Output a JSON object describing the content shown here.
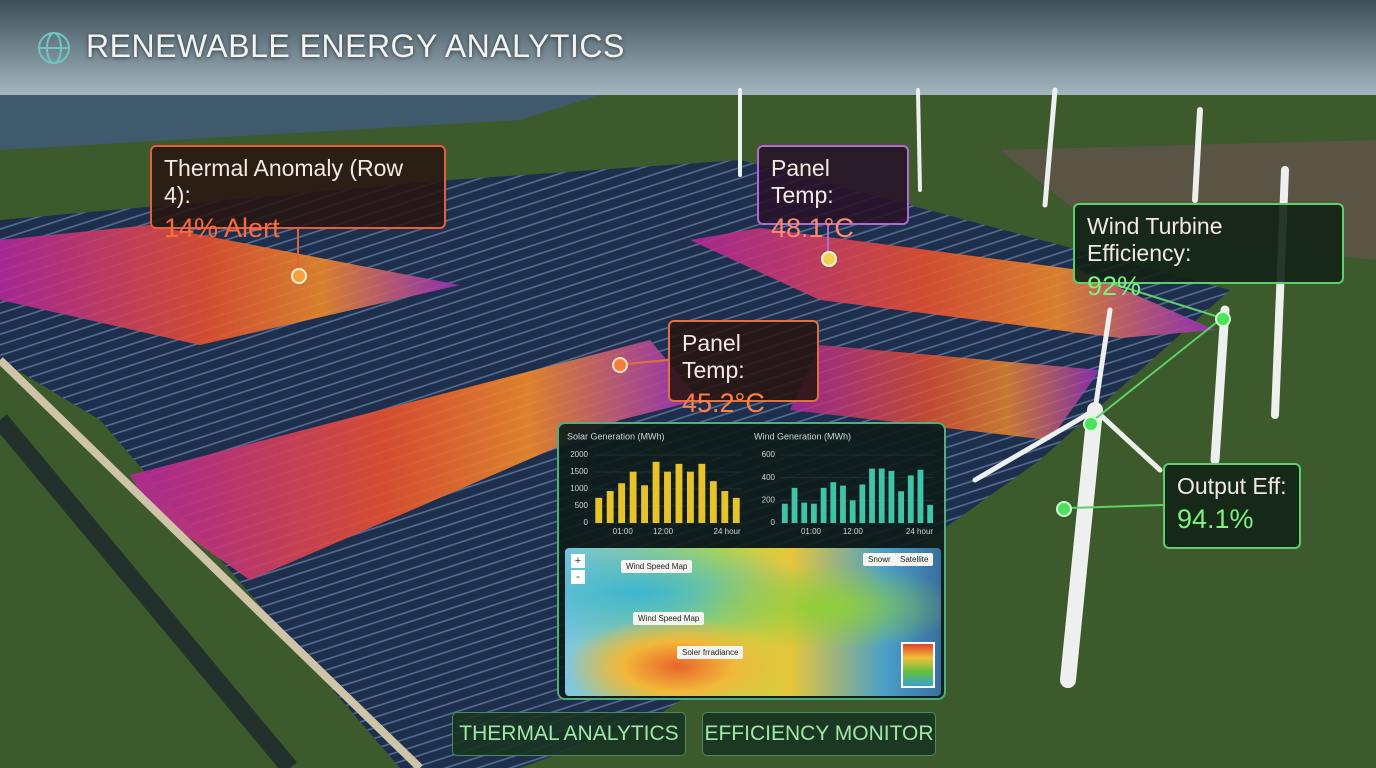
{
  "header": {
    "title": "RENEWABLE ENERGY ANALYTICS"
  },
  "callouts": [
    {
      "label": "Thermal Anomaly (Row 4):",
      "value": "14% Alert"
    },
    {
      "label": "Panel Temp:",
      "value": "48.1°C"
    },
    {
      "label": "Panel Temp:",
      "value": "45.2°C"
    },
    {
      "label": "Wind Turbine Efficiency:",
      "value": "92%"
    },
    {
      "label": "Output Eff:",
      "value": "94.1%"
    }
  ],
  "panel": {
    "charts": [
      {
        "type": "bar",
        "title": "Solar Generation (MWh)",
        "color": "#e8c22a",
        "values": [
          740,
          940,
          1170,
          1510,
          1110,
          1800,
          1510,
          1740,
          1510,
          1740,
          1230,
          940,
          740
        ],
        "ylim": [
          0,
          2000
        ],
        "yticks": [
          0,
          500,
          1000,
          1500,
          2000
        ],
        "xlabels": [
          "01:00",
          "12:00",
          "24 hour"
        ]
      },
      {
        "type": "bar",
        "title": "Wind Generation (MWh)",
        "color": "#3fc4a8",
        "values": [
          170,
          310,
          180,
          170,
          310,
          360,
          330,
          200,
          340,
          480,
          480,
          460,
          280,
          420,
          470,
          160
        ],
        "ylim": [
          0,
          600
        ],
        "yticks": [
          0,
          200,
          400,
          600
        ],
        "xlabels": [
          "01:00",
          "12:00",
          "24 hour"
        ]
      }
    ],
    "map": {
      "labels": [
        "Wind Speed Map",
        "Wind Speed Map",
        "Soler frradiance"
      ],
      "controls": [
        "+",
        "-"
      ],
      "layers": [
        "Snowr",
        "Satellite"
      ]
    }
  },
  "buttons": [
    "THERMAL ANALYTICS",
    "EFFICIENCY MONITOR"
  ]
}
